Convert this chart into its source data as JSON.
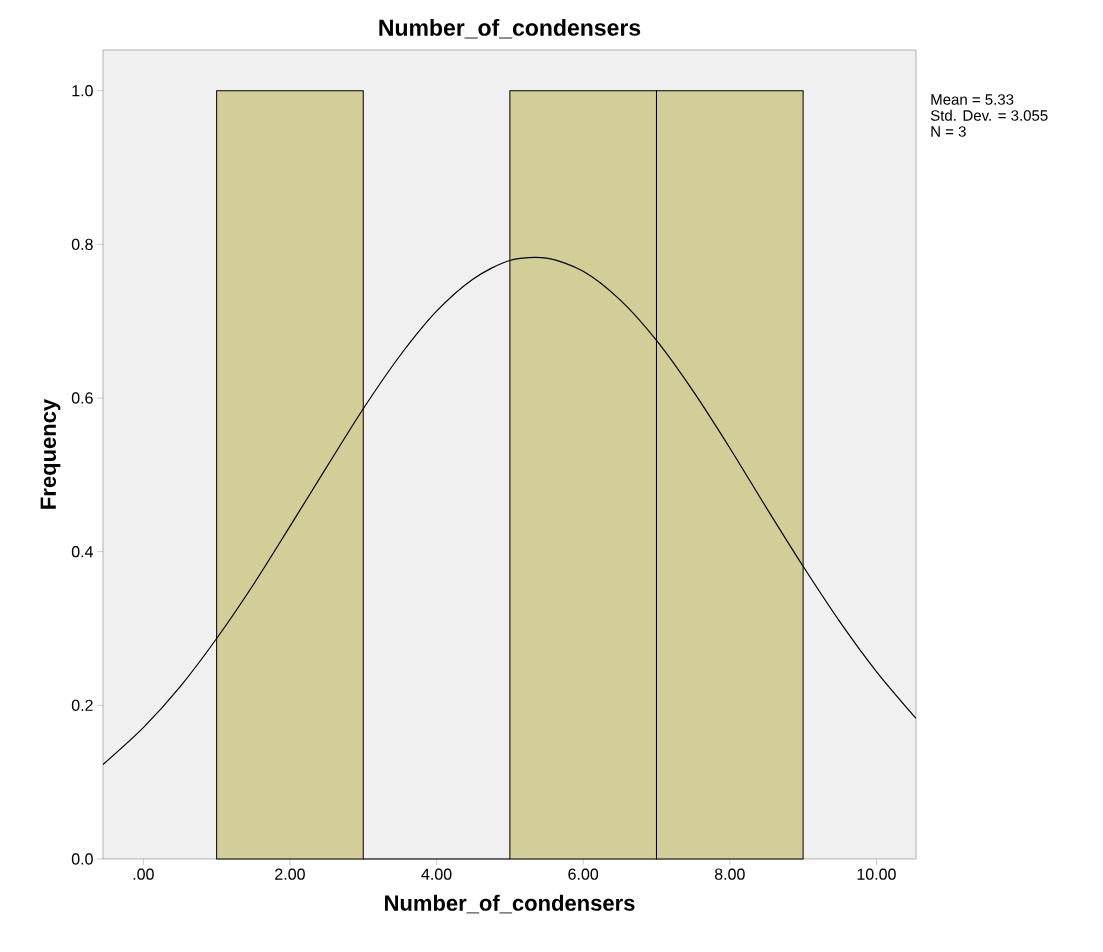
{
  "chart_data": {
    "type": "histogram",
    "title": "Number_of_condensers",
    "xlabel": "Number_of_condensers",
    "ylabel": "Frequency",
    "bins": [
      1,
      3,
      5,
      7,
      9
    ],
    "values": [
      1,
      0,
      1,
      1
    ],
    "color": "#d3ce97",
    "series": [
      {
        "type": "line",
        "color": "#000000",
        "x": [
          -0.55,
          0,
          0.5,
          1,
          1.5,
          2,
          2.5,
          3,
          3.5,
          4,
          4.5,
          5,
          5.5,
          6,
          6.5,
          7,
          7.5,
          8,
          8.5,
          9,
          9.5,
          10,
          10.54
        ],
        "values": [
          0.123,
          0.171,
          0.224,
          0.287,
          0.357,
          0.433,
          0.51,
          0.586,
          0.655,
          0.713,
          0.755,
          0.779,
          0.782,
          0.765,
          0.728,
          0.675,
          0.609,
          0.535,
          0.457,
          0.381,
          0.309,
          0.244,
          0.183
        ]
      }
    ],
    "xlim": [
      -0.55,
      10.54
    ],
    "ylim": [
      0,
      1.053
    ],
    "xticks": [
      {
        "value": 0,
        "label": ".00"
      },
      {
        "value": 2,
        "label": "2.00"
      },
      {
        "value": 4,
        "label": "4.00"
      },
      {
        "value": 6,
        "label": "6.00"
      },
      {
        "value": 8,
        "label": "8.00"
      },
      {
        "value": 10,
        "label": "10.00"
      }
    ],
    "yticks": [
      {
        "value": 0,
        "label": "0.0"
      },
      {
        "value": 0.2,
        "label": "0.2"
      },
      {
        "value": 0.4,
        "label": "0.4"
      },
      {
        "value": 0.6,
        "label": "0.6"
      },
      {
        "value": 0.8,
        "label": "0.8"
      },
      {
        "value": 1,
        "label": "1.0"
      }
    ],
    "annotations": [
      "Mean = 5.33",
      "Std. Dev. = 3.055",
      "N = 3"
    ]
  }
}
